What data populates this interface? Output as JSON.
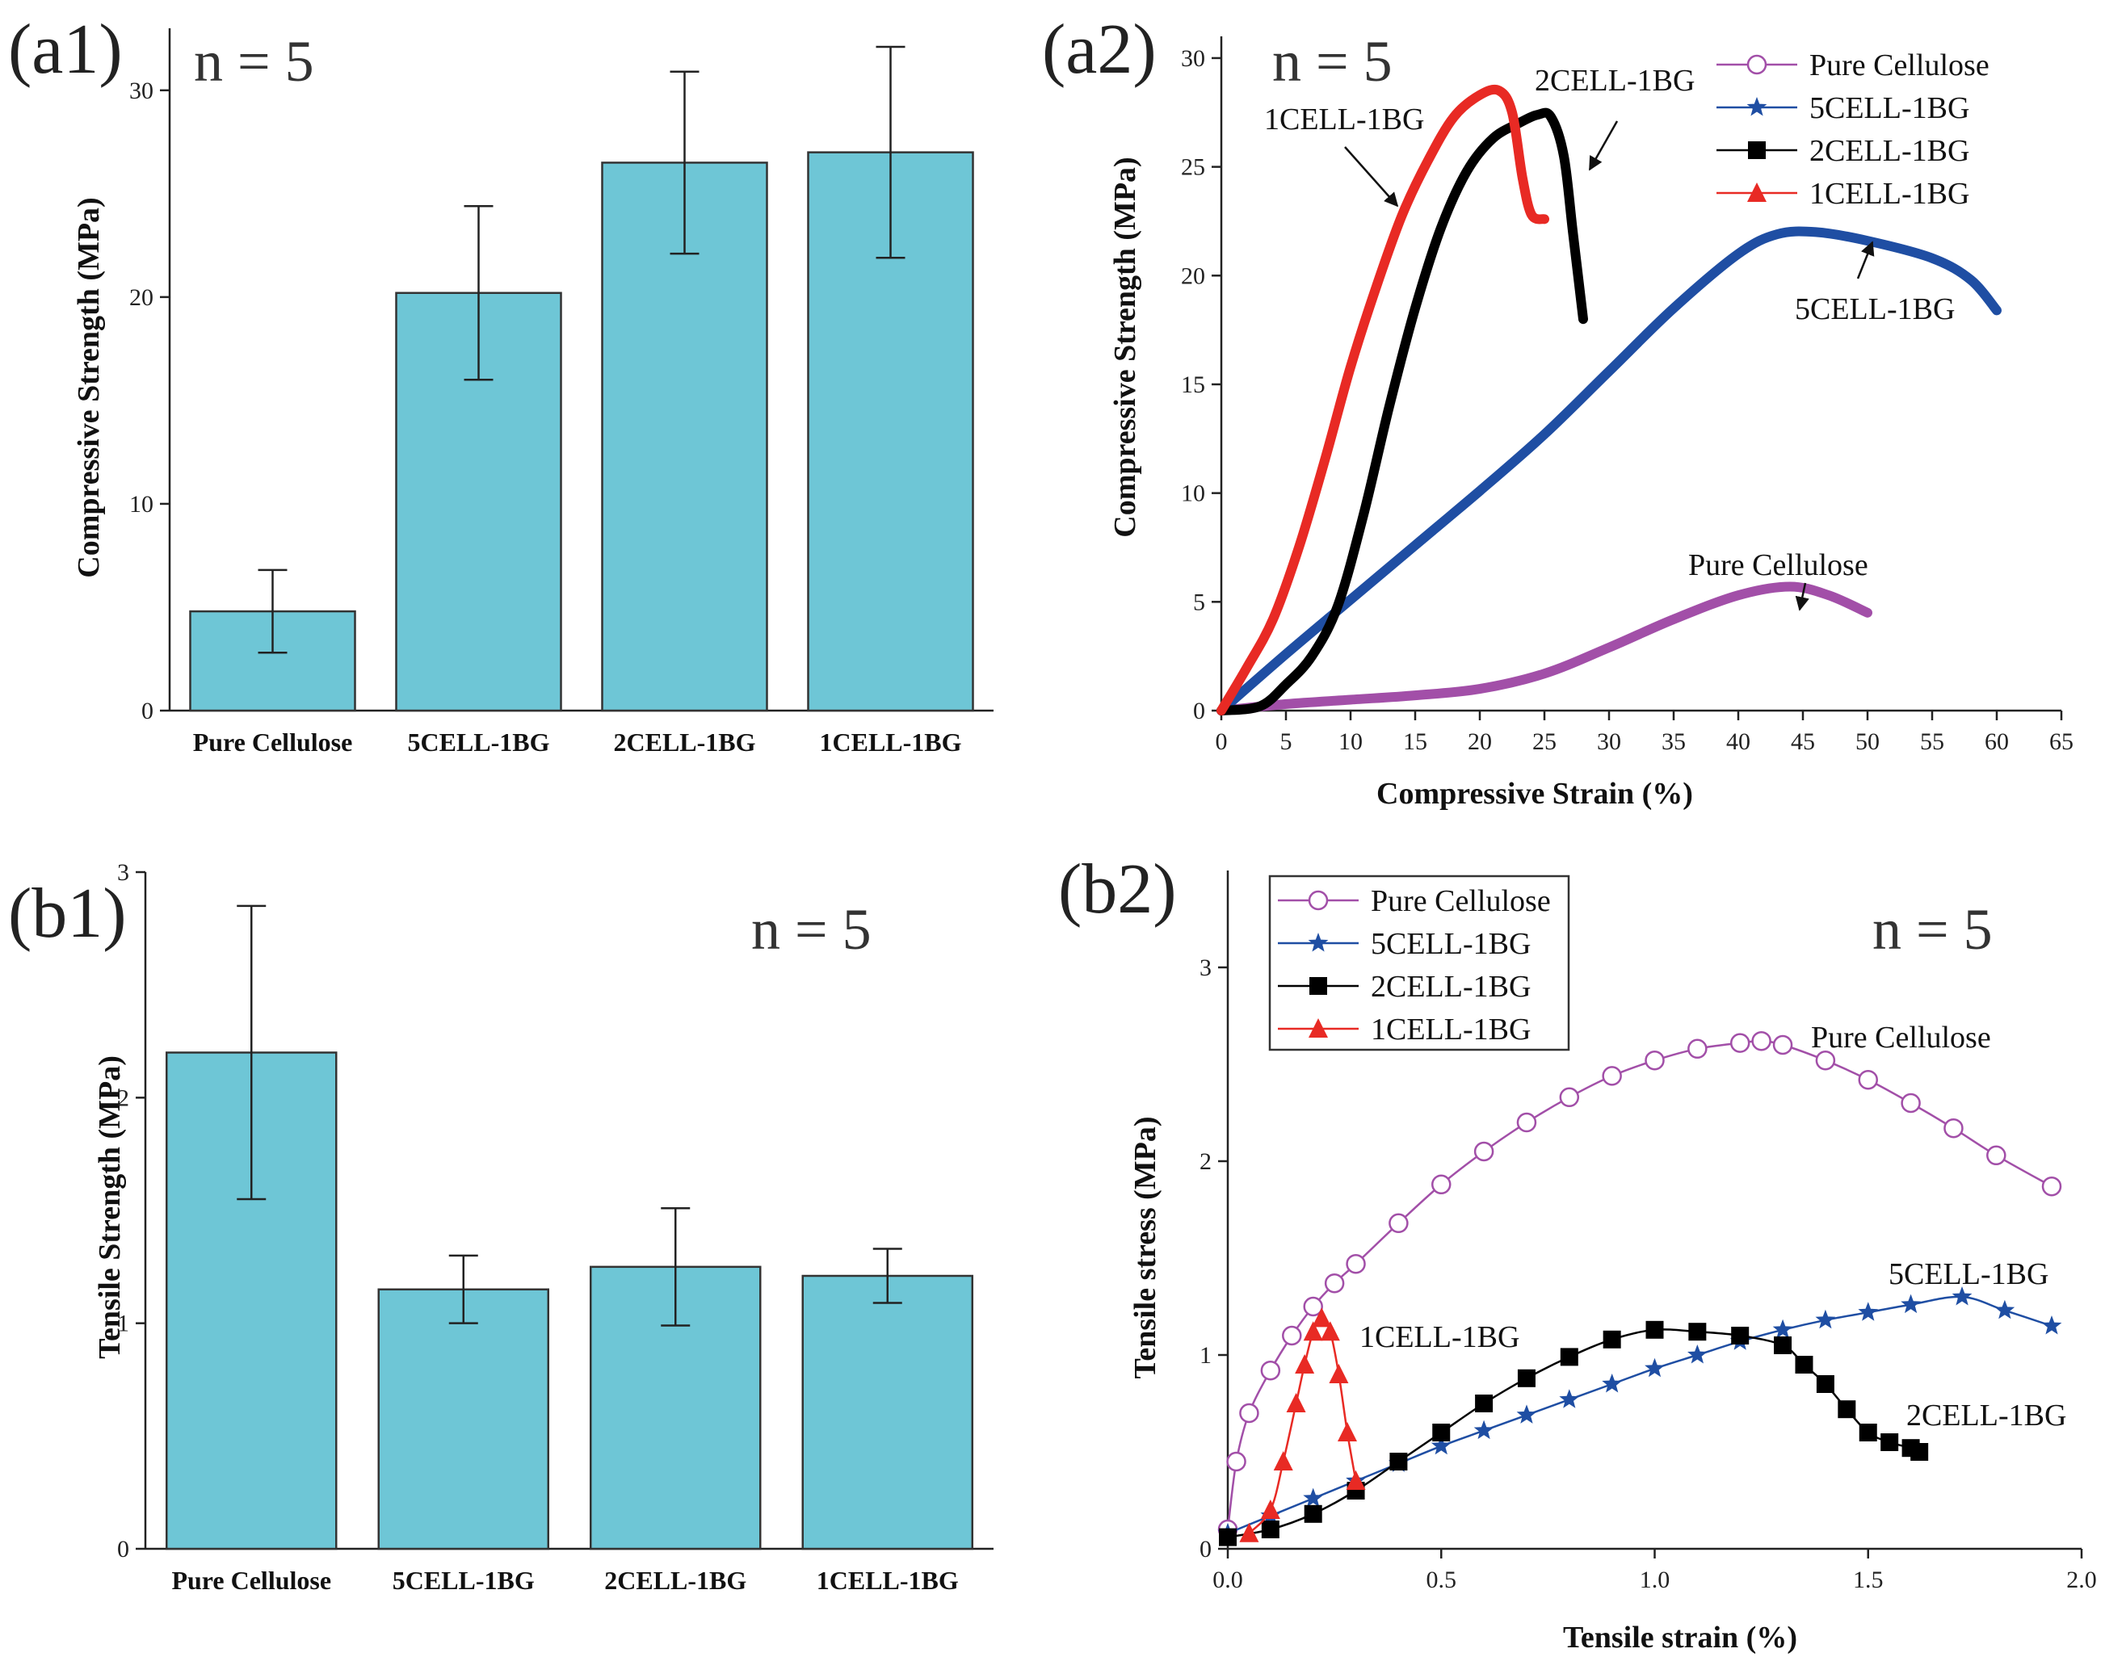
{
  "chart_data": [
    {
      "id": "a1",
      "type": "bar",
      "panel_label": "(a1)",
      "annotation": "n = 5",
      "categories": [
        "Pure Cellulose",
        "5CELL-1BG",
        "2CELL-1BG",
        "1CELL-1BG"
      ],
      "values": [
        4.8,
        20.2,
        26.5,
        27.0
      ],
      "errors": [
        2.0,
        4.2,
        4.4,
        5.1
      ],
      "ylabel": "Compressive Strength (MPa)",
      "xlabel": "",
      "ylim": [
        0,
        33
      ],
      "yticks": [
        "0",
        "10",
        "20",
        "30"
      ],
      "bar_color": "#6ec6d6"
    },
    {
      "id": "a2",
      "type": "line",
      "panel_label": "(a2)",
      "annotation": "n = 5",
      "xlabel": "Compressive Strain (%)",
      "ylabel": "Compressive Strength (MPa)",
      "xlim": [
        0,
        65
      ],
      "ylim": [
        0,
        31
      ],
      "xticks": [
        "0",
        "5",
        "10",
        "15",
        "20",
        "25",
        "30",
        "35",
        "40",
        "45",
        "50",
        "55",
        "60",
        "65"
      ],
      "yticks": [
        "0",
        "5",
        "10",
        "15",
        "20",
        "25",
        "30"
      ],
      "legend": [
        "Pure Cellulose",
        "5CELL-1BG",
        "2CELL-1BG",
        "1CELL-1BG"
      ],
      "curve_labels": [
        "Pure Cellulose",
        "5CELL-1BG",
        "2CELL-1BG",
        "1CELL-1BG"
      ],
      "series": [
        {
          "name": "Pure Cellulose",
          "color": "#a24fa8",
          "x": [
            0,
            5,
            10,
            15,
            20,
            25,
            30,
            35,
            40,
            44,
            47,
            50
          ],
          "y": [
            0,
            0.3,
            0.5,
            0.7,
            1.0,
            1.7,
            2.9,
            4.2,
            5.3,
            5.7,
            5.3,
            4.5
          ]
        },
        {
          "name": "5CELL-1BG",
          "color": "#1f4ea3",
          "x": [
            0,
            5,
            10,
            15,
            20,
            25,
            30,
            35,
            40,
            43,
            46,
            50,
            55,
            58,
            60
          ],
          "y": [
            0,
            2.6,
            5.1,
            7.6,
            10.1,
            12.7,
            15.6,
            18.5,
            21.0,
            21.9,
            22.0,
            21.6,
            20.8,
            19.8,
            18.4
          ]
        },
        {
          "name": "2CELL-1BG",
          "color": "#000000",
          "x": [
            0,
            3,
            5,
            7,
            9,
            11,
            13,
            15,
            17,
            19,
            21,
            23,
            24.5,
            25.5,
            26.5,
            27.2,
            28
          ],
          "y": [
            0,
            0.2,
            1.2,
            2.5,
            4.8,
            9.0,
            14.0,
            18.5,
            22.2,
            24.8,
            26.3,
            27.0,
            27.4,
            27.3,
            25.5,
            22.0,
            18.0
          ]
        },
        {
          "name": "1CELL-1BG",
          "color": "#e82a24",
          "x": [
            0,
            2,
            4,
            6,
            8,
            10,
            12,
            14,
            16,
            18,
            20,
            21.5,
            22.5,
            23.3,
            24,
            25
          ],
          "y": [
            0,
            2.0,
            4.2,
            7.5,
            11.5,
            15.8,
            19.5,
            22.8,
            25.3,
            27.3,
            28.3,
            28.5,
            27.5,
            24.5,
            22.8,
            22.6
          ]
        }
      ]
    },
    {
      "id": "b1",
      "type": "bar",
      "panel_label": "(b1)",
      "annotation": "n = 5",
      "categories": [
        "Pure Cellulose",
        "5CELL-1BG",
        "2CELL-1BG",
        "1CELL-1BG"
      ],
      "values": [
        2.2,
        1.15,
        1.25,
        1.21
      ],
      "errors": [
        0.65,
        0.15,
        0.26,
        0.12
      ],
      "ylabel": "Tensile Strength (MPa)",
      "xlabel": "",
      "ylim": [
        0,
        3
      ],
      "yticks": [
        "0",
        "1",
        "2",
        "3"
      ],
      "bar_color": "#6ec6d6"
    },
    {
      "id": "b2",
      "type": "line",
      "panel_label": "(b2)",
      "annotation": "n = 5",
      "xlabel": "Tensile strain (%)",
      "ylabel": "Tensile stress (MPa)",
      "xlim": [
        0,
        2.0
      ],
      "ylim": [
        0,
        3.5
      ],
      "xticks": [
        "0.0",
        "0.5",
        "1.0",
        "1.5",
        "2.0"
      ],
      "yticks": [
        "0",
        "1",
        "2",
        "3"
      ],
      "legend": [
        "Pure Cellulose",
        "5CELL-1BG",
        "2CELL-1BG",
        "1CELL-1BG"
      ],
      "curve_labels": [
        "Pure Cellulose",
        "5CELL-1BG",
        "2CELL-1BG",
        "1CELL-1BG"
      ],
      "series": [
        {
          "name": "Pure Cellulose",
          "color": "#a24fa8",
          "marker": "circle",
          "x": [
            0.0,
            0.02,
            0.05,
            0.1,
            0.15,
            0.2,
            0.25,
            0.3,
            0.4,
            0.5,
            0.6,
            0.7,
            0.8,
            0.9,
            1.0,
            1.1,
            1.2,
            1.25,
            1.3,
            1.4,
            1.5,
            1.6,
            1.7,
            1.8,
            1.93
          ],
          "y": [
            0.1,
            0.45,
            0.7,
            0.92,
            1.1,
            1.25,
            1.37,
            1.47,
            1.68,
            1.88,
            2.05,
            2.2,
            2.33,
            2.44,
            2.52,
            2.58,
            2.61,
            2.62,
            2.6,
            2.52,
            2.42,
            2.3,
            2.17,
            2.03,
            1.87
          ]
        },
        {
          "name": "5CELL-1BG",
          "color": "#1f4ea3",
          "marker": "star",
          "x": [
            0.0,
            0.1,
            0.2,
            0.3,
            0.4,
            0.5,
            0.6,
            0.7,
            0.8,
            0.9,
            1.0,
            1.1,
            1.2,
            1.3,
            1.4,
            1.5,
            1.6,
            1.72,
            1.82,
            1.93
          ],
          "y": [
            0.08,
            0.17,
            0.26,
            0.35,
            0.44,
            0.53,
            0.61,
            0.69,
            0.77,
            0.85,
            0.93,
            1.0,
            1.07,
            1.13,
            1.18,
            1.22,
            1.26,
            1.3,
            1.23,
            1.15
          ]
        },
        {
          "name": "2CELL-1BG",
          "color": "#000000",
          "marker": "square",
          "x": [
            0.0,
            0.1,
            0.2,
            0.3,
            0.4,
            0.5,
            0.6,
            0.7,
            0.8,
            0.9,
            1.0,
            1.1,
            1.2,
            1.3,
            1.35,
            1.4,
            1.45,
            1.5,
            1.55,
            1.6,
            1.62
          ],
          "y": [
            0.06,
            0.1,
            0.18,
            0.3,
            0.45,
            0.6,
            0.75,
            0.88,
            0.99,
            1.08,
            1.13,
            1.12,
            1.1,
            1.05,
            0.95,
            0.85,
            0.72,
            0.6,
            0.55,
            0.52,
            0.5
          ]
        },
        {
          "name": "1CELL-1BG",
          "color": "#e82a24",
          "marker": "triangle",
          "x": [
            0.05,
            0.1,
            0.13,
            0.16,
            0.18,
            0.2,
            0.22,
            0.24,
            0.26,
            0.28,
            0.3
          ],
          "y": [
            0.08,
            0.2,
            0.45,
            0.75,
            0.95,
            1.12,
            1.19,
            1.12,
            0.9,
            0.6,
            0.35
          ]
        }
      ]
    }
  ]
}
